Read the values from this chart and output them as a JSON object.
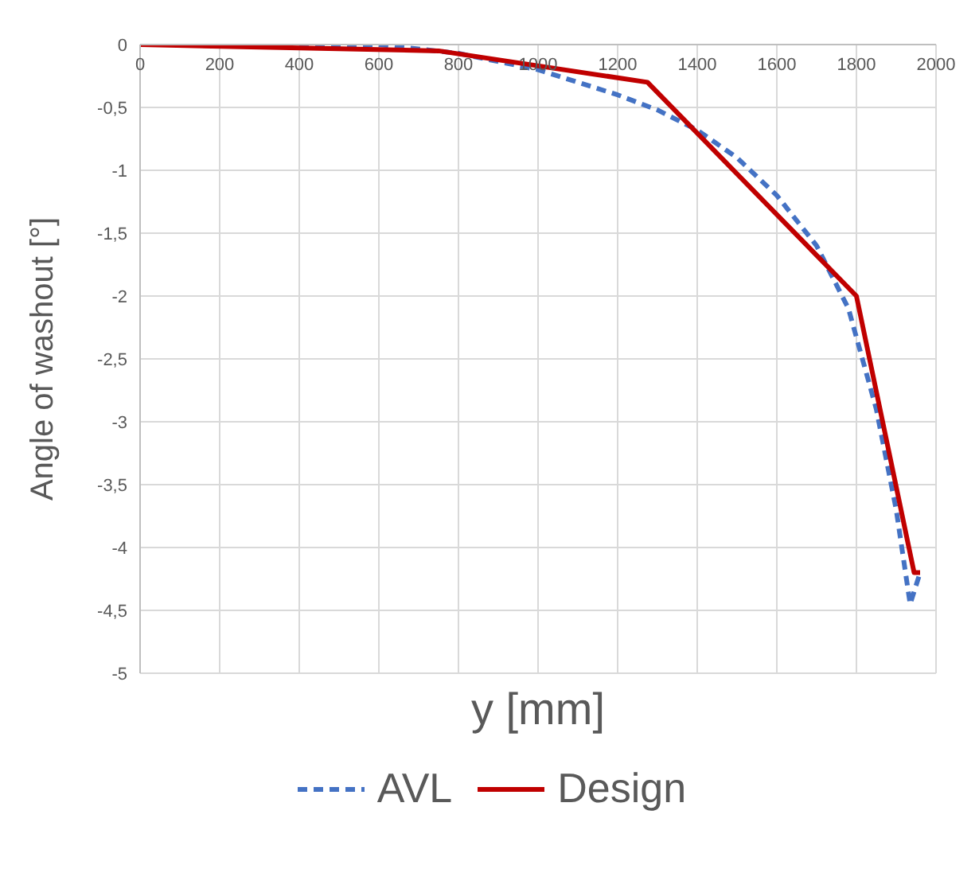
{
  "chart_data": {
    "type": "line",
    "xlabel": "y [mm]",
    "ylabel": "Angle of washout [°]",
    "xlim": [
      0,
      2000
    ],
    "xticks": [
      0,
      200,
      400,
      600,
      800,
      1000,
      1200,
      1400,
      1600,
      1800,
      2000
    ],
    "ylim": [
      -5,
      0
    ],
    "yticks": [
      {
        "value": -5,
        "label": "-5"
      },
      {
        "value": -4.5,
        "label": "-4,5"
      },
      {
        "value": -4,
        "label": "-4"
      },
      {
        "value": -3.5,
        "label": "-3,5"
      },
      {
        "value": -3,
        "label": "-3"
      },
      {
        "value": -2.5,
        "label": "-2,5"
      },
      {
        "value": -2,
        "label": "-2"
      },
      {
        "value": -1.5,
        "label": "-1,5"
      },
      {
        "value": -1,
        "label": "-1"
      },
      {
        "value": -0.5,
        "label": "-0,5"
      },
      {
        "value": 0,
        "label": "0"
      }
    ],
    "grid": true,
    "legend": "bottom",
    "marker": "none",
    "series": [
      {
        "name": "AVL",
        "color": "#4472c4",
        "line_style": "dashed",
        "x": [
          0,
          300,
          600,
          800,
          1000,
          1200,
          1300,
          1400,
          1500,
          1600,
          1700,
          1780,
          1850,
          1900,
          1935,
          1960
        ],
        "values": [
          0,
          0,
          0,
          -0.07,
          -0.2,
          -0.4,
          -0.52,
          -0.68,
          -0.9,
          -1.2,
          -1.6,
          -2.1,
          -2.9,
          -3.7,
          -4.45,
          -4.2
        ]
      },
      {
        "name": "Design",
        "color": "#c00000",
        "line_style": "solid",
        "x": [
          0,
          750,
          1275,
          1800,
          1945,
          1960
        ],
        "values": [
          0,
          -0.05,
          -0.3,
          -2,
          -4.2,
          -4.2
        ]
      }
    ]
  }
}
